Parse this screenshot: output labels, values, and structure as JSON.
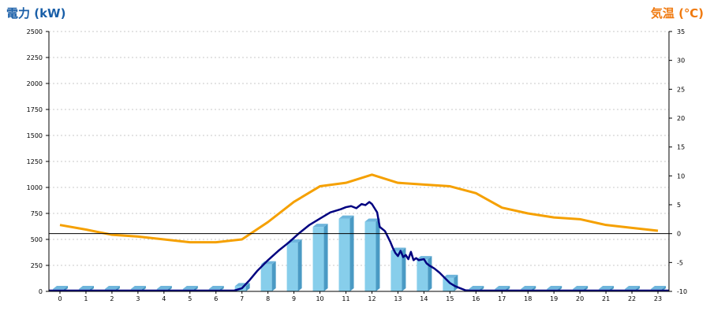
{
  "chart_data": {
    "type": "bar",
    "ylabel": "電力 (kW)",
    "ylabel_right": "気温 (℃)",
    "colors": {
      "ylabel": "#1a5fa8",
      "ylabel_right": "#f07a10",
      "bars": "#87ceeb",
      "bars_side": "#4a9ac4",
      "line_power": "#000080",
      "line_temp": "#f5a000"
    },
    "x_ticks": [
      "0",
      "1",
      "2",
      "3",
      "4",
      "5",
      "6",
      "7",
      "8",
      "9",
      "10",
      "11",
      "12",
      "13",
      "14",
      "15",
      "16",
      "17",
      "18",
      "19",
      "20",
      "21",
      "22",
      "23"
    ],
    "y_ticks": [
      "0",
      "250",
      "500",
      "750",
      "1000",
      "1250",
      "1500",
      "1750",
      "2000",
      "2250",
      "2500"
    ],
    "y2_ticks": [
      "-10",
      "-5",
      "0",
      "5",
      "10",
      "15",
      "20",
      "25",
      "30",
      "35"
    ],
    "ylim": [
      0,
      2500
    ],
    "y2lim": [
      -10,
      35
    ],
    "grid": true,
    "series": [
      {
        "type": "bar",
        "unit": "kW",
        "x": [
          0,
          1,
          2,
          3,
          4,
          5,
          6,
          7,
          8,
          9,
          10,
          11,
          12,
          13,
          14,
          15,
          16,
          17,
          18,
          19,
          20,
          21,
          22,
          23
        ],
        "values": [
          0,
          0,
          0,
          0,
          0,
          0,
          0,
          50,
          260,
          470,
          620,
          700,
          670,
          390,
          310,
          130,
          0,
          0,
          0,
          0,
          0,
          0,
          0,
          0
        ]
      },
      {
        "type": "line",
        "unit": "kW",
        "x": [
          6.7,
          7,
          7.3,
          7.6,
          8,
          8.4,
          8.8,
          9.2,
          9.6,
          10,
          10.4,
          10.8,
          11,
          11.2,
          11.4,
          11.6,
          11.75,
          11.9,
          12,
          12.1,
          12.2,
          12.3,
          12.5,
          12.7,
          12.8,
          12.9,
          13,
          13.1,
          13.2,
          13.3,
          13.4,
          13.5,
          13.6,
          13.7,
          13.8,
          14,
          14.1,
          14.2,
          14.4,
          14.6,
          14.8,
          15,
          15.2,
          15.4,
          15.6,
          15.8
        ],
        "values": [
          0,
          30,
          110,
          200,
          300,
          390,
          470,
          560,
          640,
          700,
          760,
          790,
          810,
          820,
          800,
          840,
          830,
          860,
          840,
          800,
          760,
          620,
          580,
          480,
          420,
          370,
          340,
          390,
          330,
          350,
          310,
          380,
          300,
          320,
          300,
          310,
          270,
          250,
          220,
          180,
          130,
          80,
          50,
          30,
          10,
          0
        ]
      },
      {
        "type": "line",
        "axis": "right",
        "unit": "℃",
        "x": [
          0,
          1,
          2,
          3,
          4,
          5,
          6,
          7,
          8,
          9,
          10,
          11,
          12,
          13,
          14,
          15,
          16,
          17,
          18,
          19,
          20,
          21,
          22,
          23
        ],
        "values": [
          1.5,
          0.7,
          -0.2,
          -0.5,
          -1.0,
          -1.5,
          -1.5,
          -1.0,
          2.0,
          5.5,
          8.2,
          8.8,
          10.2,
          8.8,
          8.5,
          8.2,
          7.0,
          4.5,
          3.5,
          2.8,
          2.5,
          1.5,
          1.0,
          0.5
        ]
      }
    ]
  }
}
